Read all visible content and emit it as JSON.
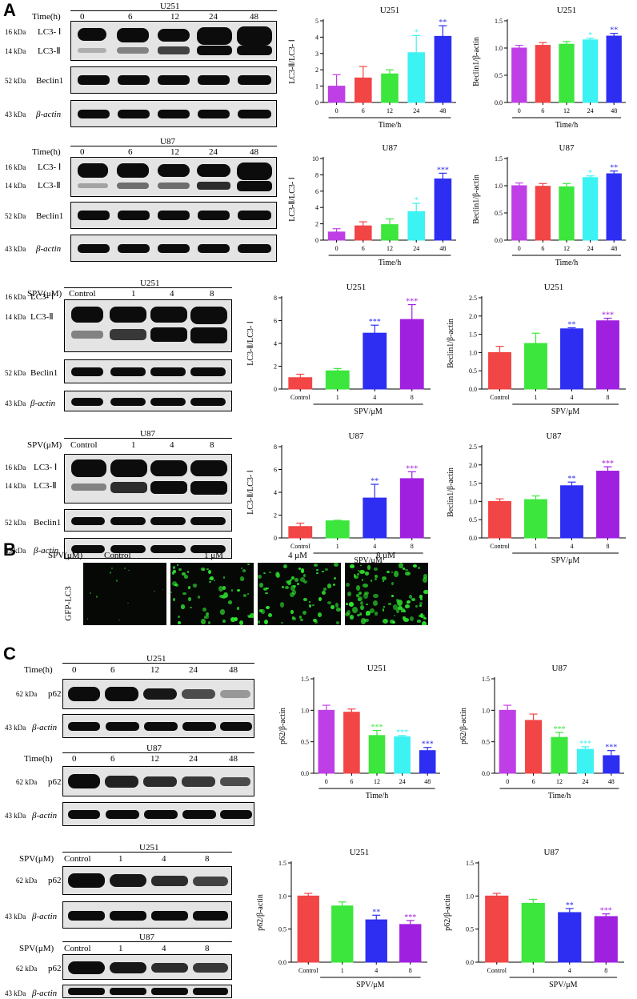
{
  "panel_labels": {
    "a": "A",
    "b": "B",
    "c": "C"
  },
  "units": {
    "kda16": "16 kDa",
    "kda14": "14 kDa",
    "kda52": "52 kDa",
    "kda43": "43 kDa",
    "kda62": "62 kDa"
  },
  "labels": {
    "time": "Time(h)",
    "spv": "SPV(μM)",
    "lc3i": "LC3- Ⅰ",
    "lc3ii": "LC3-Ⅱ",
    "beclin1": "Beclin1",
    "bactin": "β-actin",
    "p62": "p62",
    "gfp": "GFP-LC3",
    "u251": "U251",
    "u87": "U87",
    "timeh": "Time/h",
    "spvum": "SPV/μM"
  },
  "time_points": [
    "0",
    "6",
    "12",
    "24",
    "48"
  ],
  "dose_lanes": [
    "Control",
    "1",
    "4",
    "8"
  ],
  "gfp_doses": [
    "Control",
    "1 μM",
    "4 μM",
    "8 μM"
  ],
  "colors": {
    "purple": "#bf3fe6",
    "red": "#f24545",
    "green": "#3ce63c",
    "cyan": "#3cf2f2",
    "blue": "#2e2ef2",
    "violet": "#a020e0",
    "gfp": "#2ee62e"
  },
  "chart_data": [
    {
      "id": "a1",
      "type": "bar",
      "title": "U251",
      "xlabel": "Time/h",
      "ylabel": "LC3-Ⅱ/LC3- Ⅰ",
      "categories": [
        "0",
        "6",
        "12",
        "24",
        "48"
      ],
      "values": [
        1.0,
        1.5,
        1.75,
        3.05,
        4.05
      ],
      "errors": [
        0.7,
        0.7,
        0.25,
        1.05,
        0.65
      ],
      "significance": [
        "",
        "",
        "",
        "*",
        "**"
      ],
      "ylim": [
        0,
        5
      ],
      "yticks": [
        0,
        1,
        2,
        3,
        4,
        5
      ],
      "colors": [
        "#bf3fe6",
        "#f24545",
        "#3ce63c",
        "#3cf2f2",
        "#2e2ef2"
      ]
    },
    {
      "id": "a2",
      "type": "bar",
      "title": "U251",
      "xlabel": "Time/h",
      "ylabel": "Beclin1/β-actin",
      "categories": [
        "0",
        "6",
        "12",
        "24",
        "48"
      ],
      "values": [
        1.0,
        1.05,
        1.07,
        1.15,
        1.22
      ],
      "errors": [
        0.05,
        0.05,
        0.05,
        0.03,
        0.05
      ],
      "significance": [
        "",
        "",
        "",
        "*",
        "**"
      ],
      "ylim": [
        0,
        1.5
      ],
      "yticks": [
        0,
        0.5,
        1.0,
        1.5
      ],
      "colors": [
        "#bf3fe6",
        "#f24545",
        "#3ce63c",
        "#3cf2f2",
        "#2e2ef2"
      ]
    },
    {
      "id": "a3",
      "type": "bar",
      "title": "U87",
      "xlabel": "Time/h",
      "ylabel": "LC3-Ⅱ/LC3- Ⅰ",
      "categories": [
        "0",
        "6",
        "12",
        "24",
        "48"
      ],
      "values": [
        1.0,
        1.75,
        1.9,
        3.5,
        7.5
      ],
      "errors": [
        0.4,
        0.5,
        0.7,
        1.0,
        0.7
      ],
      "significance": [
        "",
        "",
        "",
        "*",
        "***"
      ],
      "ylim": [
        0,
        10
      ],
      "yticks": [
        0,
        2,
        4,
        6,
        8,
        10
      ],
      "colors": [
        "#bf3fe6",
        "#f24545",
        "#3ce63c",
        "#3cf2f2",
        "#2e2ef2"
      ]
    },
    {
      "id": "a4",
      "type": "bar",
      "title": "U87",
      "xlabel": "Time/h",
      "ylabel": "Beclin1/β-actin",
      "categories": [
        "0",
        "6",
        "12",
        "24",
        "48"
      ],
      "values": [
        1.0,
        0.99,
        0.98,
        1.15,
        1.22
      ],
      "errors": [
        0.05,
        0.05,
        0.06,
        0.03,
        0.05
      ],
      "significance": [
        "",
        "",
        "",
        "*",
        "**"
      ],
      "ylim": [
        0,
        1.5
      ],
      "yticks": [
        0,
        0.5,
        1.0,
        1.5
      ],
      "colors": [
        "#bf3fe6",
        "#f24545",
        "#3ce63c",
        "#3cf2f2",
        "#2e2ef2"
      ]
    },
    {
      "id": "a5",
      "type": "bar",
      "title": "U251",
      "xlabel": "SPV/μM",
      "ylabel": "LC3-Ⅱ/LC3- Ⅰ",
      "categories": [
        "Control",
        "1",
        "4",
        "8"
      ],
      "values": [
        1.0,
        1.6,
        4.9,
        6.1
      ],
      "errors": [
        0.3,
        0.2,
        0.7,
        1.3
      ],
      "significance": [
        "",
        "",
        "***",
        "***"
      ],
      "ylim": [
        0,
        8
      ],
      "yticks": [
        0,
        2,
        4,
        6,
        8
      ],
      "colors": [
        "#f24545",
        "#3ce63c",
        "#2e2ef2",
        "#a020e0"
      ]
    },
    {
      "id": "a6",
      "type": "bar",
      "title": "U251",
      "xlabel": "SPV/μM",
      "ylabel": "Beclin1/β-actin",
      "categories": [
        "Control",
        "1",
        "4",
        "8"
      ],
      "values": [
        1.0,
        1.25,
        1.65,
        1.87
      ],
      "errors": [
        0.17,
        0.28,
        0.03,
        0.07
      ],
      "significance": [
        "",
        "",
        "**",
        "***"
      ],
      "ylim": [
        0,
        2.5
      ],
      "yticks": [
        0,
        0.5,
        1.0,
        1.5,
        2.0,
        2.5
      ],
      "colors": [
        "#f24545",
        "#3ce63c",
        "#2e2ef2",
        "#a020e0"
      ]
    },
    {
      "id": "a7",
      "type": "bar",
      "title": "U87",
      "xlabel": "SPV/μM",
      "ylabel": "LC3-Ⅱ/LC3- Ⅰ",
      "categories": [
        "Control",
        "1",
        "4",
        "8"
      ],
      "values": [
        1.0,
        1.5,
        3.5,
        5.2
      ],
      "errors": [
        0.3,
        0.05,
        1.2,
        0.6
      ],
      "significance": [
        "",
        "",
        "**",
        "***"
      ],
      "ylim": [
        0,
        8
      ],
      "yticks": [
        0,
        2,
        4,
        6,
        8
      ],
      "colors": [
        "#f24545",
        "#3ce63c",
        "#2e2ef2",
        "#a020e0"
      ]
    },
    {
      "id": "a8",
      "type": "bar",
      "title": "U87",
      "xlabel": "SPV/μM",
      "ylabel": "Beclin1/β-actin",
      "categories": [
        "Control",
        "1",
        "4",
        "8"
      ],
      "values": [
        1.0,
        1.05,
        1.43,
        1.83
      ],
      "errors": [
        0.07,
        0.1,
        0.1,
        0.12
      ],
      "significance": [
        "",
        "",
        "**",
        "***"
      ],
      "ylim": [
        0,
        2.5
      ],
      "yticks": [
        0,
        0.5,
        1.0,
        1.5,
        2.0,
        2.5
      ],
      "colors": [
        "#f24545",
        "#3ce63c",
        "#2e2ef2",
        "#a020e0"
      ]
    },
    {
      "id": "c1",
      "type": "bar",
      "title": "U251",
      "xlabel": "Time/h",
      "ylabel": "p62/β-actin",
      "categories": [
        "0",
        "6",
        "12",
        "24",
        "48"
      ],
      "values": [
        1.0,
        0.97,
        0.6,
        0.58,
        0.36
      ],
      "errors": [
        0.08,
        0.05,
        0.08,
        0.02,
        0.05
      ],
      "significance": [
        "",
        "",
        "***",
        "***",
        "***"
      ],
      "ylim": [
        0,
        1.5
      ],
      "yticks": [
        0,
        0.5,
        1.0,
        1.5
      ],
      "colors": [
        "#bf3fe6",
        "#f24545",
        "#3ce63c",
        "#3cf2f2",
        "#2e2ef2"
      ]
    },
    {
      "id": "c2",
      "type": "bar",
      "title": "U87",
      "xlabel": "Time/h",
      "ylabel": "p62/β-actin",
      "categories": [
        "0",
        "6",
        "12",
        "24",
        "48"
      ],
      "values": [
        1.0,
        0.84,
        0.57,
        0.38,
        0.28
      ],
      "errors": [
        0.08,
        0.1,
        0.08,
        0.04,
        0.08
      ],
      "significance": [
        "",
        "",
        "***",
        "***",
        "***"
      ],
      "ylim": [
        0,
        1.5
      ],
      "yticks": [
        0,
        0.5,
        1.0,
        1.5
      ],
      "colors": [
        "#bf3fe6",
        "#f24545",
        "#3ce63c",
        "#3cf2f2",
        "#2e2ef2"
      ]
    },
    {
      "id": "c3",
      "type": "bar",
      "title": "U251",
      "xlabel": "SPV/μM",
      "ylabel": "p62/β-actin",
      "categories": [
        "Control",
        "1",
        "4",
        "8"
      ],
      "values": [
        1.0,
        0.85,
        0.64,
        0.57
      ],
      "errors": [
        0.04,
        0.06,
        0.07,
        0.06
      ],
      "significance": [
        "",
        "",
        "**",
        "***"
      ],
      "ylim": [
        0,
        1.5
      ],
      "yticks": [
        0,
        0.5,
        1.0,
        1.5
      ],
      "colors": [
        "#f24545",
        "#3ce63c",
        "#2e2ef2",
        "#a020e0"
      ]
    },
    {
      "id": "c4",
      "type": "bar",
      "title": "U87",
      "xlabel": "SPV/μM",
      "ylabel": "p62/β-actin",
      "categories": [
        "Control",
        "1",
        "4",
        "8"
      ],
      "values": [
        1.0,
        0.89,
        0.75,
        0.69
      ],
      "errors": [
        0.04,
        0.06,
        0.06,
        0.04
      ],
      "significance": [
        "",
        "",
        "**",
        "***"
      ],
      "ylim": [
        0,
        1.5
      ],
      "yticks": [
        0,
        0.5,
        1.0,
        1.5
      ],
      "colors": [
        "#f24545",
        "#3ce63c",
        "#2e2ef2",
        "#a020e0"
      ]
    }
  ]
}
